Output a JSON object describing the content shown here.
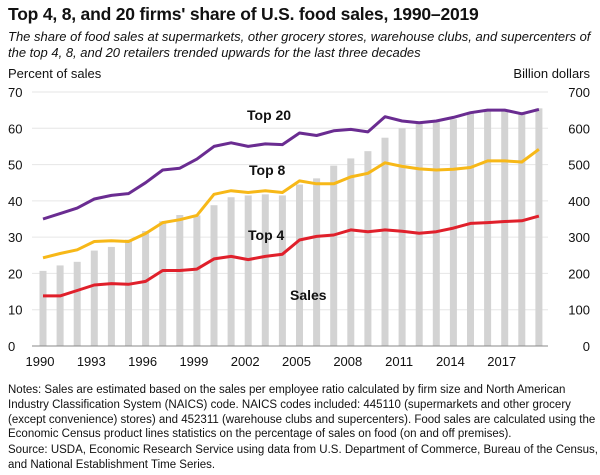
{
  "chart_data": {
    "type": "bar+line",
    "title": "Top 4, 8, and 20 firms' share of U.S. food sales, 1990–2019",
    "subtitle": "The share of food sales at supermarkets, other grocery stores, warehouse clubs, and supercenters of the top 4, 8, and 20 retailers trended upwards for the last three decades",
    "ylabel_left": "Percent of sales",
    "ylabel_right": "Billion dollars",
    "ylim_left": [
      0,
      70
    ],
    "ylim_right": [
      0,
      700
    ],
    "yticks_left": [
      "0",
      "10",
      "20",
      "30",
      "40",
      "50",
      "60",
      "70"
    ],
    "yticks_right": [
      "0",
      "100",
      "200",
      "300",
      "400",
      "500",
      "600",
      "700"
    ],
    "x": [
      1990,
      1991,
      1992,
      1993,
      1994,
      1995,
      1996,
      1997,
      1998,
      1999,
      2000,
      2001,
      2002,
      2003,
      2004,
      2005,
      2006,
      2007,
      2008,
      2009,
      2010,
      2011,
      2012,
      2013,
      2014,
      2015,
      2016,
      2017,
      2018,
      2019
    ],
    "xticks": [
      "1990",
      "1993",
      "1996",
      "1999",
      "2002",
      "2005",
      "2008",
      "2011",
      "2014",
      "2017"
    ],
    "grid": true,
    "bars": {
      "name": "Sales",
      "axis": "right",
      "color": "#d3d3d3",
      "values": [
        207,
        222,
        232,
        263,
        273,
        293,
        317,
        344,
        361,
        360,
        388,
        410,
        415,
        418,
        415,
        445,
        462,
        497,
        517,
        537,
        574,
        600,
        612,
        617,
        625,
        645,
        650,
        650,
        645,
        655
      ]
    },
    "series": [
      {
        "name": "Top 20",
        "color": "#6a2c91",
        "values": [
          35,
          36.5,
          38,
          40.5,
          41.5,
          42,
          45,
          48.5,
          49,
          51.5,
          55,
          56,
          55,
          55.7,
          55.5,
          58.7,
          58,
          59.3,
          59.7,
          59,
          63.2,
          62,
          61.5,
          62,
          63,
          64.3,
          65,
          65,
          64,
          65.2
        ]
      },
      {
        "name": "Top 8",
        "color": "#f7b818",
        "values": [
          24.3,
          25.5,
          26.5,
          28.8,
          29,
          28.8,
          31,
          34,
          34.8,
          36,
          41.8,
          42.8,
          42.3,
          42.8,
          42.3,
          45.5,
          44.7,
          44.7,
          46.6,
          47.6,
          50.5,
          49.5,
          48.8,
          48.5,
          48.7,
          49.2,
          51,
          51,
          50.7,
          54.2
        ]
      },
      {
        "name": "Top 4",
        "color": "#e0202b",
        "values": [
          13.8,
          13.8,
          15.3,
          16.8,
          17.2,
          17,
          17.8,
          20.8,
          20.8,
          21.2,
          24,
          24.7,
          23.8,
          24.7,
          25.3,
          29.2,
          30.2,
          30.6,
          32,
          31.5,
          32,
          31.6,
          31.1,
          31.5,
          32.5,
          33.8,
          34,
          34.3,
          34.5,
          35.8
        ]
      }
    ],
    "annotations": [
      "Top 20",
      "Top 8",
      "Top 4",
      "Sales"
    ]
  },
  "notes": "Notes: Sales are estimated based on the sales per employee ratio calculated by firm size and North American Industry Classification System (NAICS) code. NAICS codes included: 445110 (supermarkets and other grocery (except convenience) stores) and 452311 (warehouse clubs and supercenters). Food sales are calculated using the Economic Census product lines statistics on the percentage of sales on food (on and off premises).",
  "source": "Source: USDA, Economic Research Service using data from U.S. Department of Commerce, Bureau of the Census, and National Establishment Time Series."
}
